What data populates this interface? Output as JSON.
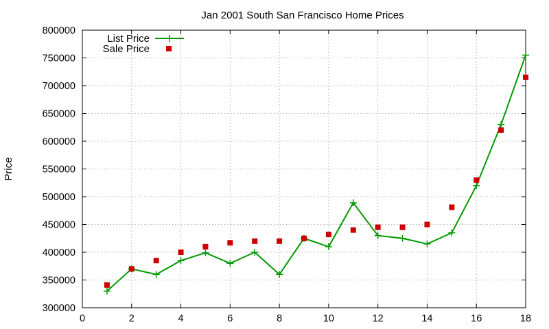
{
  "chart_data": {
    "type": "line",
    "title": "Jan 2001 South San Francisco Home Prices",
    "xlabel": "",
    "ylabel": "Price",
    "xlim": [
      0,
      18
    ],
    "ylim": [
      300000,
      800000
    ],
    "x_ticks": [
      0,
      2,
      4,
      6,
      8,
      10,
      12,
      14,
      16,
      18
    ],
    "y_ticks": [
      300000,
      350000,
      400000,
      450000,
      500000,
      550000,
      600000,
      650000,
      700000,
      750000,
      800000
    ],
    "grid": true,
    "legend_position": "top-left",
    "series": [
      {
        "name": "List Price",
        "style": "line+cross",
        "color": "#009900",
        "x": [
          1,
          2,
          3,
          4,
          5,
          6,
          7,
          8,
          9,
          10,
          11,
          12,
          13,
          14,
          15,
          16,
          17,
          18
        ],
        "y": [
          330000,
          370000,
          360000,
          385000,
          399000,
          380000,
          400000,
          360000,
          425000,
          410000,
          489000,
          430000,
          425000,
          415000,
          435000,
          520000,
          630000,
          755000
        ]
      },
      {
        "name": "Sale Price",
        "style": "square",
        "color": "#cc0000",
        "x": [
          1,
          2,
          3,
          4,
          5,
          6,
          7,
          8,
          9,
          10,
          11,
          12,
          13,
          14,
          15,
          16,
          17,
          18
        ],
        "y": [
          341000,
          370000,
          385000,
          400000,
          410000,
          417000,
          420000,
          420000,
          425000,
          432000,
          440000,
          445000,
          445000,
          450000,
          481000,
          530000,
          620000,
          715000
        ]
      }
    ]
  }
}
